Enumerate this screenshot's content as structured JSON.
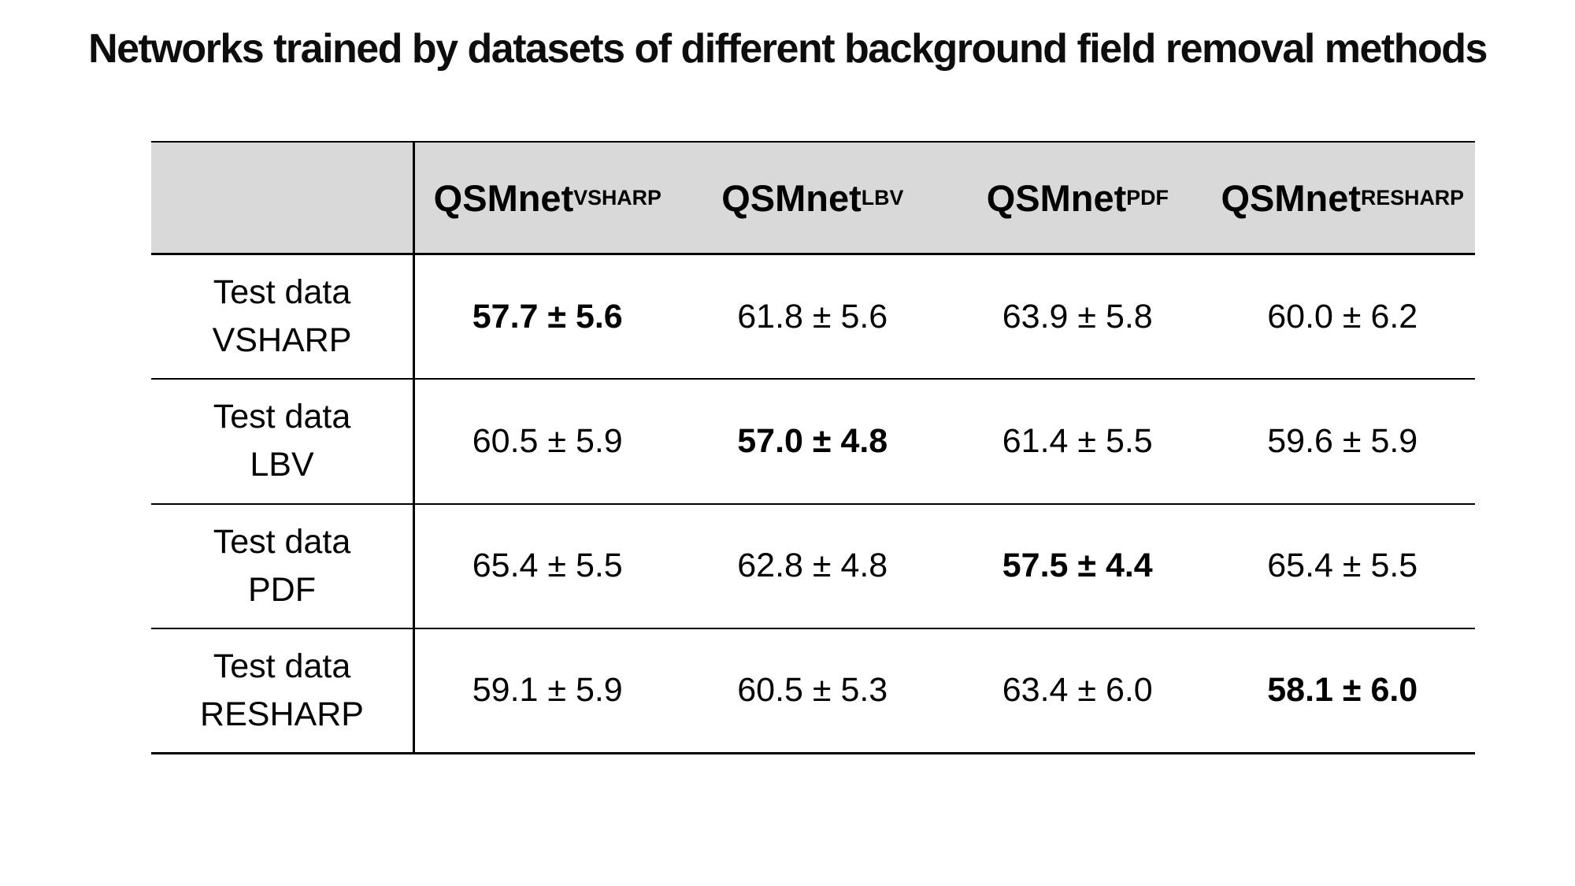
{
  "title": "Networks trained by datasets of different background field removal methods",
  "table": {
    "columns": [
      {
        "name": "QSMnet",
        "subscript": "VSHARP"
      },
      {
        "name": "QSMnet",
        "subscript": "LBV"
      },
      {
        "name": "QSMnet",
        "subscript": "PDF"
      },
      {
        "name": "QSMnet",
        "subscript": "RESHARP"
      }
    ],
    "rows": [
      {
        "label_line1": "Test data",
        "label_line2": "VSHARP",
        "cells": [
          {
            "text": "57.7 ± 5.6",
            "bold": true
          },
          {
            "text": "61.8 ± 5.6",
            "bold": false
          },
          {
            "text": "63.9 ± 5.8",
            "bold": false
          },
          {
            "text": "60.0 ± 6.2",
            "bold": false
          }
        ]
      },
      {
        "label_line1": "Test data",
        "label_line2": "LBV",
        "cells": [
          {
            "text": "60.5 ± 5.9",
            "bold": false
          },
          {
            "text": "57.0 ± 4.8",
            "bold": true
          },
          {
            "text": "61.4 ± 5.5",
            "bold": false
          },
          {
            "text": "59.6 ± 5.9",
            "bold": false
          }
        ]
      },
      {
        "label_line1": "Test data",
        "label_line2": "PDF",
        "cells": [
          {
            "text": "65.4 ± 5.5",
            "bold": false
          },
          {
            "text": "62.8 ± 4.8",
            "bold": false
          },
          {
            "text": "57.5 ± 4.4",
            "bold": true
          },
          {
            "text": "65.4 ± 5.5",
            "bold": false
          }
        ]
      },
      {
        "label_line1": "Test data",
        "label_line2": "RESHARP",
        "cells": [
          {
            "text": "59.1 ± 5.9",
            "bold": false
          },
          {
            "text": "60.5 ± 5.3",
            "bold": false
          },
          {
            "text": "63.4 ± 6.0",
            "bold": false
          },
          {
            "text": "58.1 ± 6.0",
            "bold": true
          }
        ]
      }
    ]
  },
  "colors": {
    "header_bg": "#d9d9d9",
    "border": "#000000",
    "text": "#000000",
    "page_bg": "#ffffff"
  }
}
